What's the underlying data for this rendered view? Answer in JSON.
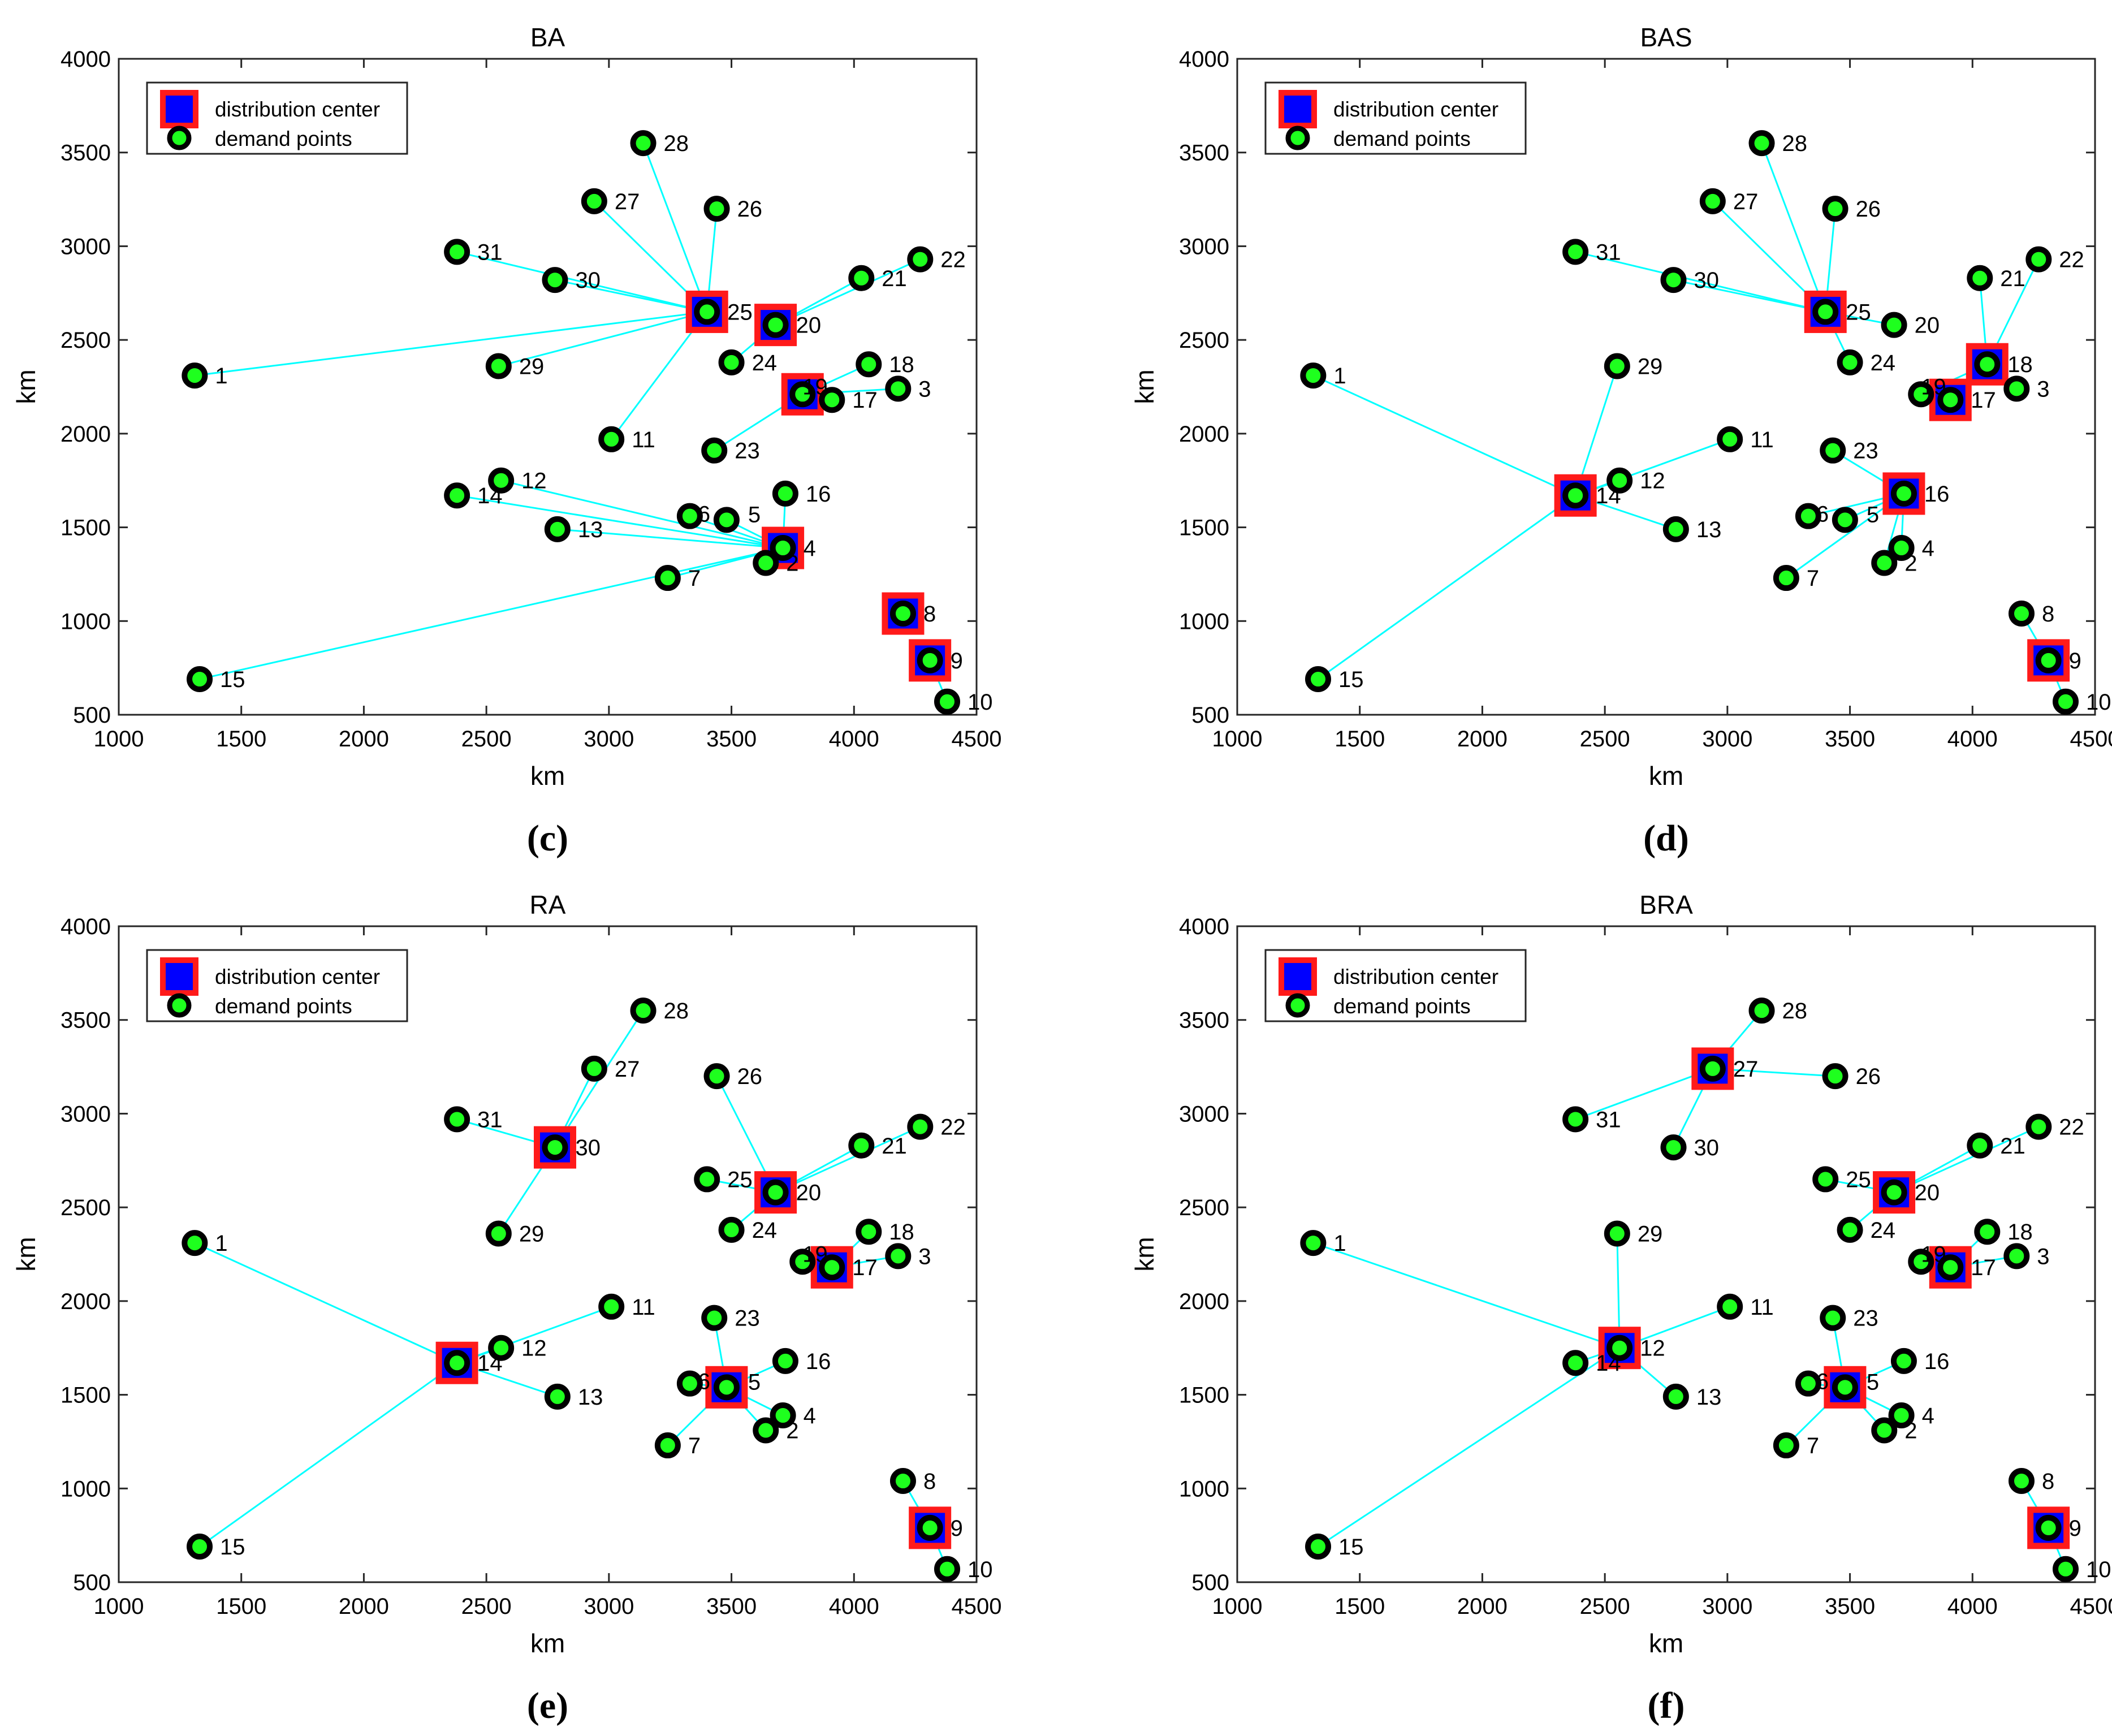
{
  "axis_label": "km",
  "legend": {
    "center_label": "distribution center",
    "demand_label": "demand points"
  },
  "colors": {
    "line": "#00ffff",
    "center_fill": "#0000ff",
    "center_edge": "#ff1a1a",
    "point_fill": "#1eff1e",
    "point_edge": "#000000"
  },
  "points": [
    {
      "id": "1",
      "x": 1310,
      "y": 2310
    },
    {
      "id": "2",
      "x": 3640,
      "y": 1310
    },
    {
      "id": "3",
      "x": 4180,
      "y": 2240
    },
    {
      "id": "4",
      "x": 3710,
      "y": 1390
    },
    {
      "id": "5",
      "x": 3480,
      "y": 1540
    },
    {
      "id": "6",
      "x": 3330,
      "y": 1560
    },
    {
      "id": "7",
      "x": 3240,
      "y": 1230
    },
    {
      "id": "8",
      "x": 4200,
      "y": 1040
    },
    {
      "id": "9",
      "x": 4310,
      "y": 790
    },
    {
      "id": "10",
      "x": 4380,
      "y": 570
    },
    {
      "id": "11",
      "x": 3010,
      "y": 1970
    },
    {
      "id": "12",
      "x": 2560,
      "y": 1750
    },
    {
      "id": "13",
      "x": 2790,
      "y": 1490
    },
    {
      "id": "14",
      "x": 2380,
      "y": 1670
    },
    {
      "id": "15",
      "x": 1330,
      "y": 690
    },
    {
      "id": "16",
      "x": 3720,
      "y": 1680
    },
    {
      "id": "17",
      "x": 3910,
      "y": 2180
    },
    {
      "id": "18",
      "x": 4060,
      "y": 2370
    },
    {
      "id": "19",
      "x": 3790,
      "y": 2210
    },
    {
      "id": "20",
      "x": 3680,
      "y": 2580
    },
    {
      "id": "21",
      "x": 4030,
      "y": 2830
    },
    {
      "id": "22",
      "x": 4270,
      "y": 2930
    },
    {
      "id": "23",
      "x": 3430,
      "y": 1910
    },
    {
      "id": "24",
      "x": 3500,
      "y": 2380
    },
    {
      "id": "25",
      "x": 3400,
      "y": 2650
    },
    {
      "id": "26",
      "x": 3440,
      "y": 3200
    },
    {
      "id": "27",
      "x": 2940,
      "y": 3240
    },
    {
      "id": "28",
      "x": 3140,
      "y": 3550
    },
    {
      "id": "29",
      "x": 2550,
      "y": 2360
    },
    {
      "id": "30",
      "x": 2780,
      "y": 2820
    },
    {
      "id": "31",
      "x": 2380,
      "y": 2970
    }
  ],
  "chart_data": [
    {
      "type": "scatter",
      "title": "BA",
      "caption": "(c)",
      "xlabel": "km",
      "ylabel": "km",
      "xlim": [
        1000,
        4500
      ],
      "ylim": [
        500,
        4000
      ],
      "xticks": [
        1000,
        1500,
        2000,
        2500,
        3000,
        3500,
        4000,
        4500
      ],
      "yticks": [
        500,
        1000,
        1500,
        2000,
        2500,
        3000,
        3500,
        4000
      ],
      "centers": [
        "25",
        "20",
        "19",
        "4",
        "8",
        "9"
      ],
      "assignments": {
        "25": [
          "1",
          "11",
          "29",
          "30",
          "31",
          "27",
          "28",
          "26"
        ],
        "20": [
          "24",
          "21",
          "22"
        ],
        "19": [
          "23",
          "17",
          "18",
          "3"
        ],
        "4": [
          "2",
          "5",
          "6",
          "7",
          "12",
          "13",
          "14",
          "15",
          "16"
        ],
        "8": [],
        "9": [
          "10"
        ]
      }
    },
    {
      "type": "scatter",
      "title": "BAS",
      "caption": "(d)",
      "xlabel": "km",
      "ylabel": "km",
      "xlim": [
        1000,
        4500
      ],
      "ylim": [
        500,
        4000
      ],
      "xticks": [
        1000,
        1500,
        2000,
        2500,
        3000,
        3500,
        4000,
        4500
      ],
      "yticks": [
        500,
        1000,
        1500,
        2000,
        2500,
        3000,
        3500,
        4000
      ],
      "centers": [
        "25",
        "18",
        "17",
        "14",
        "16",
        "9"
      ],
      "assignments": {
        "25": [
          "31",
          "30",
          "27",
          "28",
          "26",
          "20",
          "24"
        ],
        "18": [
          "21",
          "22",
          "3",
          "19"
        ],
        "17": [],
        "14": [
          "1",
          "15",
          "29",
          "11",
          "12",
          "13"
        ],
        "16": [
          "23",
          "6",
          "5",
          "4",
          "2",
          "7"
        ],
        "9": [
          "8",
          "10"
        ]
      }
    },
    {
      "type": "scatter",
      "title": "RA",
      "caption": "(e)",
      "xlabel": "km",
      "ylabel": "km",
      "xlim": [
        1000,
        4500
      ],
      "ylim": [
        500,
        4000
      ],
      "xticks": [
        1000,
        1500,
        2000,
        2500,
        3000,
        3500,
        4000,
        4500
      ],
      "yticks": [
        500,
        1000,
        1500,
        2000,
        2500,
        3000,
        3500,
        4000
      ],
      "centers": [
        "30",
        "20",
        "17",
        "14",
        "5",
        "9"
      ],
      "assignments": {
        "30": [
          "31",
          "27",
          "28",
          "29"
        ],
        "20": [
          "26",
          "25",
          "24",
          "21",
          "22"
        ],
        "17": [
          "19",
          "18",
          "3"
        ],
        "14": [
          "1",
          "15",
          "11",
          "12",
          "13"
        ],
        "5": [
          "23",
          "6",
          "16",
          "4",
          "2",
          "7"
        ],
        "9": [
          "8",
          "10"
        ]
      }
    },
    {
      "type": "scatter",
      "title": "BRA",
      "caption": "(f)",
      "xlabel": "km",
      "ylabel": "km",
      "xlim": [
        1000,
        4500
      ],
      "ylim": [
        500,
        4000
      ],
      "xticks": [
        1000,
        1500,
        2000,
        2500,
        3000,
        3500,
        4000,
        4500
      ],
      "yticks": [
        500,
        1000,
        1500,
        2000,
        2500,
        3000,
        3500,
        4000
      ],
      "centers": [
        "27",
        "20",
        "17",
        "12",
        "5",
        "9"
      ],
      "assignments": {
        "27": [
          "31",
          "30",
          "28",
          "26"
        ],
        "20": [
          "25",
          "24",
          "21",
          "22"
        ],
        "17": [
          "19",
          "18",
          "3"
        ],
        "12": [
          "1",
          "15",
          "14",
          "29",
          "11",
          "13"
        ],
        "5": [
          "23",
          "6",
          "16",
          "4",
          "2",
          "7"
        ],
        "9": [
          "8",
          "10"
        ]
      }
    }
  ]
}
